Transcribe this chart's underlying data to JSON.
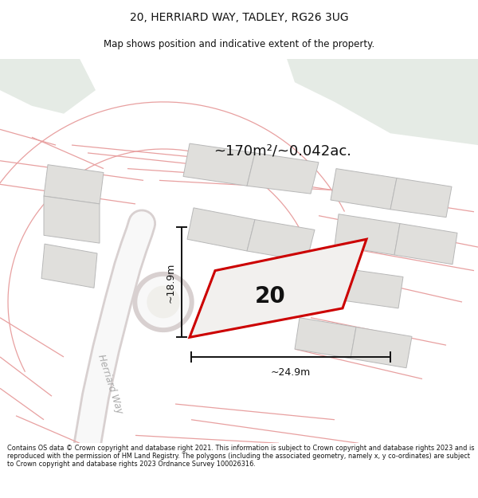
{
  "title_line1": "20, HERRIARD WAY, TADLEY, RG26 3UG",
  "title_line2": "Map shows position and indicative extent of the property.",
  "area_text": "~170m²/~0.042ac.",
  "label_number": "20",
  "dim_height": "~18.9m",
  "dim_width": "~24.9m",
  "street_label": "Herriard Way",
  "footer_text": "Contains OS data © Crown copyright and database right 2021. This information is subject to Crown copyright and database rights 2023 and is reproduced with the permission of HM Land Registry. The polygons (including the associated geometry, namely x, y co-ordinates) are subject to Crown copyright and database rights 2023 Ordnance Survey 100026316.",
  "map_bg": "#f0efeb",
  "plot_line_color": "#cc0000",
  "dim_line_color": "#111111",
  "green_color": "#e5ebe5",
  "gray_plot": "#e0dfdc",
  "gray_plot_edge": "#b8b8b8",
  "red_line_color": "#e8a0a0",
  "road_white": "#f8f8f8",
  "road_edge": "#d8d0d0",
  "street_text_color": "#aaaaaa"
}
